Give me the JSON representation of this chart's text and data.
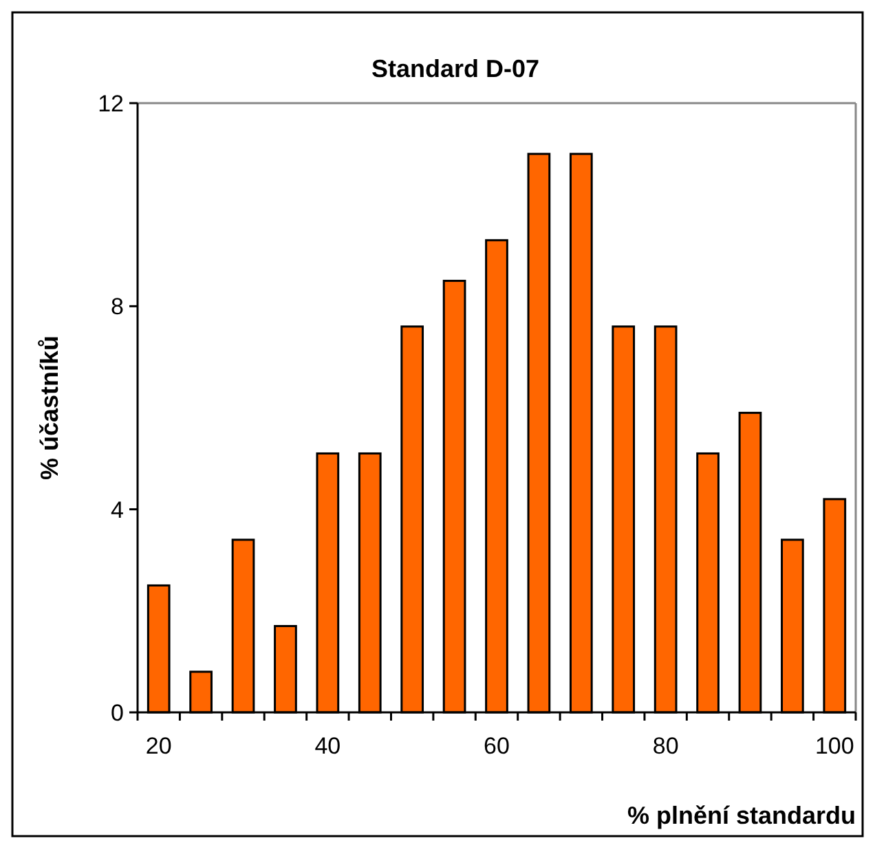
{
  "chart_data": {
    "type": "bar",
    "title": "Standard D-07",
    "xlabel": "% plnění standardu",
    "ylabel": "% účastníků",
    "categories": [
      "20",
      null,
      null,
      null,
      "40",
      null,
      null,
      null,
      "60",
      null,
      null,
      null,
      "80",
      null,
      null,
      null,
      "100"
    ],
    "values": [
      2.5,
      0.8,
      3.4,
      1.7,
      5.1,
      5.1,
      7.6,
      8.5,
      9.3,
      11,
      11,
      7.6,
      7.6,
      5.1,
      5.9,
      3.4,
      4.2
    ],
    "color": "#ff6600",
    "ylim": [
      0,
      12
    ],
    "yticks": [
      0,
      4,
      8,
      12
    ],
    "grid": false
  }
}
